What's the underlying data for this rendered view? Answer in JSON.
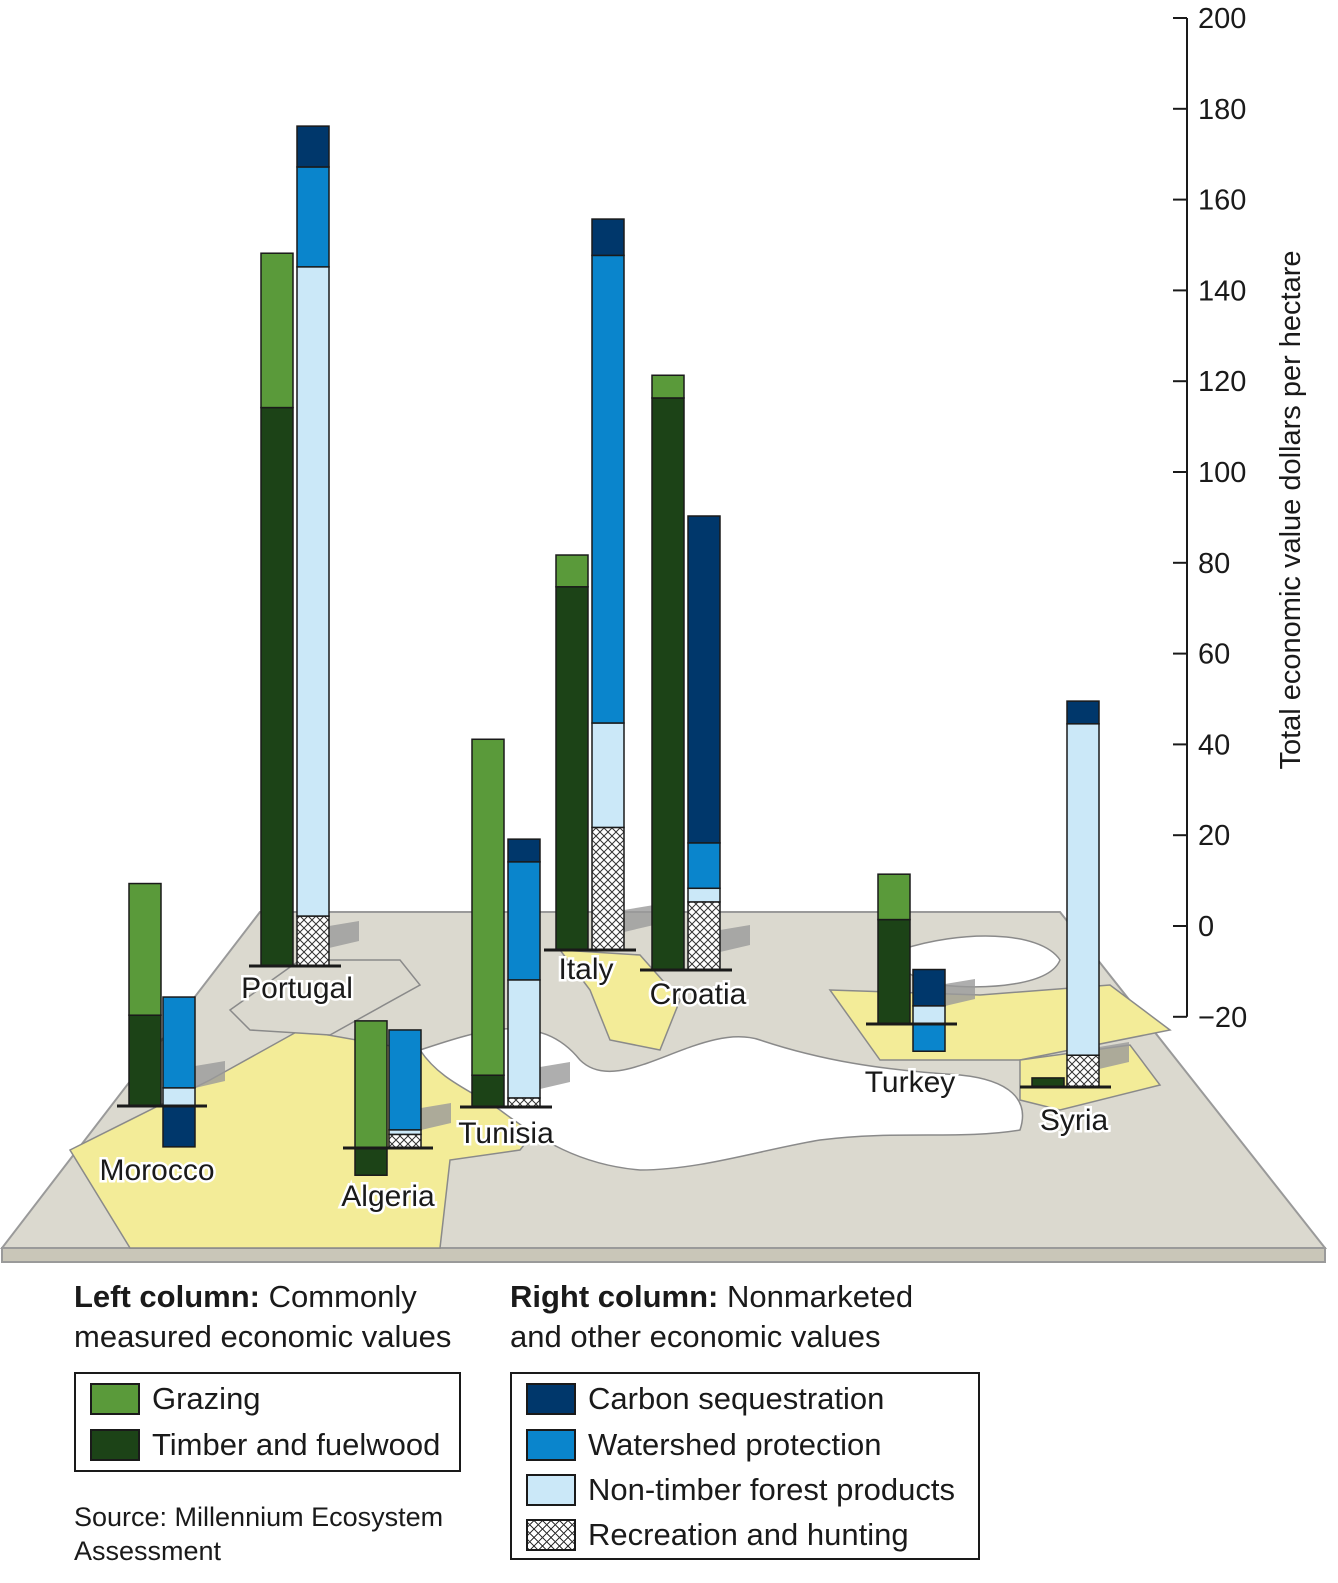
{
  "chart_data": {
    "type": "bar",
    "subtype": "stacked-3d-map",
    "ylabel": "Total economic value dollars per hectare",
    "ylim": [
      -20,
      200
    ],
    "yticks": [
      "200",
      "180",
      "160",
      "140",
      "120",
      "100",
      "80",
      "60",
      "40",
      "20",
      "0",
      "−20"
    ],
    "colors": {
      "grazing": "#5a9a3a",
      "timber": "#1c4317",
      "carbon": "#00376b",
      "watershed": "#0a85cc",
      "nontimber": "#cbe8f8",
      "recreation": "#ffffff"
    },
    "categories": [
      "Morocco",
      "Portugal",
      "Algeria",
      "Tunisia",
      "Italy",
      "Croatia",
      "Turkey",
      "Syria"
    ],
    "left_column": [
      {
        "country": "Morocco",
        "timber": 20,
        "grazing": 29
      },
      {
        "country": "Portugal",
        "timber": 123,
        "grazing": 34
      },
      {
        "country": "Algeria",
        "timber": -6,
        "grazing": 28
      },
      {
        "country": "Tunisia",
        "timber": 7,
        "grazing": 74
      },
      {
        "country": "Italy",
        "timber": 80,
        "grazing": 7
      },
      {
        "country": "Croatia",
        "timber": 126,
        "grazing": 5
      },
      {
        "country": "Turkey",
        "timber": 23,
        "grazing": 10
      },
      {
        "country": "Syria",
        "timber": 2,
        "grazing": 0
      }
    ],
    "right_column": [
      {
        "country": "Morocco",
        "recreation": 0,
        "nontimber": 4,
        "watershed": 20,
        "carbon": -9
      },
      {
        "country": "Portugal",
        "recreation": 11,
        "nontimber": 143,
        "watershed": 22,
        "carbon": 9
      },
      {
        "country": "Algeria",
        "recreation": 3,
        "nontimber": 1,
        "watershed": 22,
        "carbon": 0
      },
      {
        "country": "Tunisia",
        "recreation": 2,
        "nontimber": 26,
        "watershed": 26,
        "carbon": 5
      },
      {
        "country": "Italy",
        "recreation": 27,
        "nontimber": 23,
        "watershed": 103,
        "carbon": 8
      },
      {
        "country": "Croatia",
        "recreation": 15,
        "nontimber": 3,
        "watershed": 10,
        "carbon": 72
      },
      {
        "country": "Turkey",
        "recreation": 0,
        "nontimber": 4,
        "watershed": -6,
        "carbon": 8
      },
      {
        "country": "Syria",
        "recreation": 7,
        "nontimber": 73,
        "watershed": 0,
        "carbon": 5
      }
    ]
  },
  "legend": {
    "left_heading_bold": "Left column:",
    "left_heading_line1": "Commonly",
    "left_heading_line2": "measured economic values",
    "left_items": [
      {
        "key": "grazing",
        "label": "Grazing"
      },
      {
        "key": "timber",
        "label": "Timber and fuelwood"
      }
    ],
    "right_heading_bold": "Right column:",
    "right_heading_line1": "Nonmarketed",
    "right_heading_line2": "and other economic values",
    "right_items": [
      {
        "key": "carbon",
        "label": "Carbon sequestration"
      },
      {
        "key": "watershed",
        "label": "Watershed protection"
      },
      {
        "key": "nontimber",
        "label": "Non-timber forest products"
      },
      {
        "key": "recreation",
        "label": "Recreation and hunting"
      }
    ]
  },
  "source": {
    "line1": "Source: Millennium Ecosystem",
    "line2": "Assessment"
  }
}
